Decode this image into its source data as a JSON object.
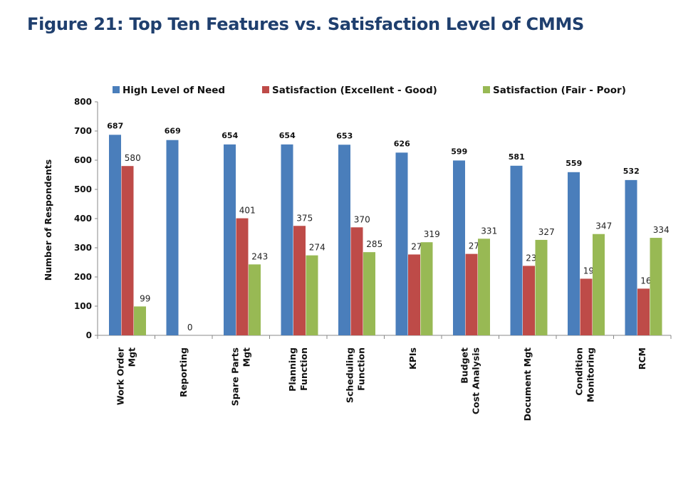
{
  "title": "Figure 21: Top Ten Features vs. Satisfaction Level of CMMS",
  "chart_data": {
    "type": "bar",
    "ylabel": "Number of Respondents",
    "xlabel": "",
    "ylim": [
      0,
      800
    ],
    "yticks": [
      0,
      100,
      200,
      300,
      400,
      500,
      600,
      700,
      800
    ],
    "grid": false,
    "legend_position": "top",
    "categories": [
      [
        "Work Order",
        "Mgt"
      ],
      [
        "Reporting"
      ],
      [
        "Spare Parts",
        "Mgt"
      ],
      [
        "Planning",
        "Function"
      ],
      [
        "Scheduling",
        "Function"
      ],
      [
        "KPIs"
      ],
      [
        "Budget",
        "Cost Analysis"
      ],
      [
        "Document Mgt"
      ],
      [
        "Condition",
        "Monitoring"
      ],
      [
        "RCM"
      ]
    ],
    "series": [
      {
        "name": "High Level of Need",
        "color": "#4a7ebb",
        "values": [
          687,
          669,
          654,
          654,
          653,
          626,
          599,
          581,
          559,
          532
        ]
      },
      {
        "name": "Satisfaction (Excellent - Good)",
        "color": "#be4b48",
        "values": [
          580,
          0,
          401,
          375,
          370,
          277,
          279,
          238,
          194,
          160
        ]
      },
      {
        "name": "Satisfaction (Fair - Poor)",
        "color": "#98b954",
        "values": [
          99,
          null,
          243,
          274,
          285,
          319,
          331,
          327,
          347,
          334
        ]
      }
    ]
  }
}
